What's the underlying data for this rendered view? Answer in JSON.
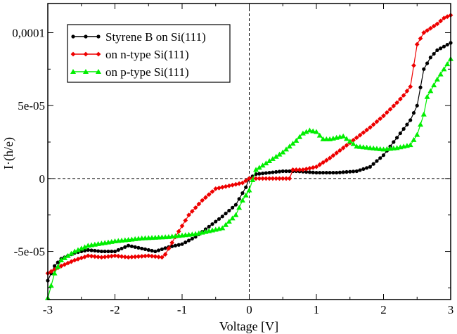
{
  "chart_data": {
    "type": "line",
    "title": "",
    "xlabel": "Voltage [V]",
    "ylabel": "I·(h/e)",
    "xlim": [
      -3,
      3
    ],
    "ylim": [
      -8.3e-05,
      0.00012
    ],
    "x_ticks": [
      -3,
      -2,
      -1,
      0,
      1,
      2,
      3
    ],
    "x_tick_labels": [
      "-3",
      "-2",
      "-1",
      "0",
      "1",
      "2",
      "3"
    ],
    "y_ticks": [
      -5e-05,
      0,
      5e-05,
      0.0001
    ],
    "y_tick_labels": [
      "-5e-05",
      "0",
      "5e-05",
      "0,0001"
    ],
    "grid": false,
    "zero_lines": true,
    "legend_position": "top-left",
    "series": [
      {
        "name": "Styrene B on Si(111)",
        "color": "#000000",
        "marker": "circle",
        "points": [
          [
            -3.0,
            -7e-05
          ],
          [
            -2.9,
            -6e-05
          ],
          [
            -2.8,
            -5.5e-05
          ],
          [
            -2.6,
            -5.1e-05
          ],
          [
            -2.4,
            -4.9e-05
          ],
          [
            -2.2,
            -5e-05
          ],
          [
            -2.0,
            -5e-05
          ],
          [
            -1.8,
            -4.6e-05
          ],
          [
            -1.6,
            -4.8e-05
          ],
          [
            -1.4,
            -5e-05
          ],
          [
            -1.2,
            -4.7e-05
          ],
          [
            -1.0,
            -4.5e-05
          ],
          [
            -0.8,
            -4e-05
          ],
          [
            -0.6,
            -3.3e-05
          ],
          [
            -0.4,
            -2.6e-05
          ],
          [
            -0.2,
            -1.8e-05
          ],
          [
            -0.05,
            -6e-06
          ],
          [
            0.0,
            0.0
          ],
          [
            0.1,
            3e-06
          ],
          [
            0.3,
            4e-06
          ],
          [
            0.5,
            5e-06
          ],
          [
            0.7,
            5e-06
          ],
          [
            1.0,
            4e-06
          ],
          [
            1.3,
            4e-06
          ],
          [
            1.6,
            5e-06
          ],
          [
            1.8,
            8e-06
          ],
          [
            2.0,
            1.6e-05
          ],
          [
            2.2,
            2.8e-05
          ],
          [
            2.4,
            4e-05
          ],
          [
            2.5,
            5e-05
          ],
          [
            2.6,
            7.5e-05
          ],
          [
            2.7,
            8.3e-05
          ],
          [
            2.8,
            8.8e-05
          ],
          [
            3.0,
            9.3e-05
          ]
        ]
      },
      {
        "name": "on n-type Si(111)",
        "color": "#ee0000",
        "marker": "diamond",
        "points": [
          [
            -3.0,
            -6.5e-05
          ],
          [
            -2.8,
            -6e-05
          ],
          [
            -2.6,
            -5.6e-05
          ],
          [
            -2.4,
            -5.3e-05
          ],
          [
            -2.2,
            -5.4e-05
          ],
          [
            -2.0,
            -5.3e-05
          ],
          [
            -1.8,
            -5.4e-05
          ],
          [
            -1.5,
            -5.3e-05
          ],
          [
            -1.3,
            -5.4e-05
          ],
          [
            -1.25,
            -5.2e-05
          ],
          [
            -1.1,
            -4e-05
          ],
          [
            -0.9,
            -2.5e-05
          ],
          [
            -0.7,
            -1.5e-05
          ],
          [
            -0.5,
            -7e-06
          ],
          [
            -0.3,
            -5e-06
          ],
          [
            -0.1,
            -3e-06
          ],
          [
            0.0,
            0.0
          ],
          [
            0.2,
            0.0
          ],
          [
            0.4,
            0.0
          ],
          [
            0.6,
            0.0
          ],
          [
            0.65,
            6e-06
          ],
          [
            0.8,
            6e-06
          ],
          [
            1.0,
            8e-06
          ],
          [
            1.2,
            1.4e-05
          ],
          [
            1.4,
            2.1e-05
          ],
          [
            1.6,
            2.8e-05
          ],
          [
            1.8,
            3.5e-05
          ],
          [
            2.0,
            4.3e-05
          ],
          [
            2.2,
            5.2e-05
          ],
          [
            2.3,
            5.7e-05
          ],
          [
            2.4,
            6.3e-05
          ],
          [
            2.5,
            9.2e-05
          ],
          [
            2.6,
            0.0001
          ],
          [
            2.8,
            0.000106
          ],
          [
            2.9,
            0.00011
          ],
          [
            3.0,
            0.000112
          ]
        ]
      },
      {
        "name": "on p-type Si(111)",
        "color": "#00ee00",
        "marker": "triangle",
        "points": [
          [
            -3.0,
            -8.2e-05
          ],
          [
            -2.9,
            -6.5e-05
          ],
          [
            -2.8,
            -5.6e-05
          ],
          [
            -2.6,
            -5e-05
          ],
          [
            -2.4,
            -4.6e-05
          ],
          [
            -2.0,
            -4.3e-05
          ],
          [
            -1.6,
            -4.1e-05
          ],
          [
            -1.2,
            -4e-05
          ],
          [
            -0.8,
            -3.8e-05
          ],
          [
            -0.4,
            -3.4e-05
          ],
          [
            -0.2,
            -2.5e-05
          ],
          [
            -0.1,
            -1.5e-05
          ],
          [
            0.0,
            -8e-06
          ],
          [
            0.1,
            6e-06
          ],
          [
            0.3,
            1.2e-05
          ],
          [
            0.5,
            1.8e-05
          ],
          [
            0.7,
            2.6e-05
          ],
          [
            0.8,
            3.1e-05
          ],
          [
            0.9,
            3.3e-05
          ],
          [
            1.0,
            3.2e-05
          ],
          [
            1.1,
            2.7e-05
          ],
          [
            1.2,
            2.7e-05
          ],
          [
            1.4,
            2.9e-05
          ],
          [
            1.6,
            2.2e-05
          ],
          [
            1.8,
            2.1e-05
          ],
          [
            2.0,
            2e-05
          ],
          [
            2.2,
            2.1e-05
          ],
          [
            2.4,
            2.3e-05
          ],
          [
            2.5,
            3e-05
          ],
          [
            2.6,
            4.4e-05
          ],
          [
            2.65,
            5.6e-05
          ],
          [
            2.8,
            6.8e-05
          ],
          [
            3.0,
            8.2e-05
          ]
        ]
      }
    ]
  }
}
